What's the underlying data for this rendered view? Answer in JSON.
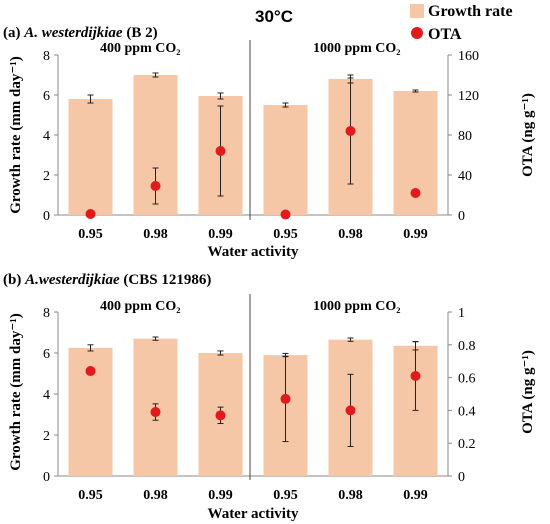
{
  "figure_title": "30°C",
  "legend": [
    {
      "label": "Growth rate",
      "color": "#f5c7a7",
      "marker": "square"
    },
    {
      "label": "OTA",
      "color": "#e31a1c",
      "marker": "circle"
    }
  ],
  "chart_data": [
    {
      "type": "bar",
      "panel": "(a) A. westerdijkiae (B 2)",
      "panel_prefix": "(a) ",
      "panel_species": "A. westerdijkiae",
      "panel_strain": " (B 2)",
      "groups": [
        "400 ppm CO₂",
        "1000 ppm CO₂"
      ],
      "categories": [
        "0.95",
        "0.98",
        "0.99",
        "0.95",
        "0.98",
        "0.99"
      ],
      "xlabel": "Water activity",
      "ylabel_left": "Growth rate (mm day⁻¹)",
      "ylabel_right": "OTA (ng g⁻¹)",
      "ylim_left": [
        0,
        8
      ],
      "yticks_left": [
        0,
        2,
        4,
        6,
        8
      ],
      "ylim_right": [
        0,
        160
      ],
      "yticks_right": [
        0,
        40,
        80,
        120,
        160
      ],
      "series": [
        {
          "name": "Growth rate",
          "axis": "left",
          "values": [
            5.8,
            7.0,
            5.95,
            5.5,
            6.8,
            6.2
          ],
          "errors": [
            0.2,
            0.1,
            0.15,
            0.1,
            0.2,
            0.05
          ]
        },
        {
          "name": "OTA",
          "axis": "right",
          "values": [
            1,
            29,
            64,
            0.5,
            84,
            22
          ],
          "errors": [
            0,
            18,
            45,
            0,
            53,
            0
          ]
        }
      ]
    },
    {
      "type": "bar",
      "panel": "(b) A.westerdijkiae (CBS 121986)",
      "panel_prefix": "(b) ",
      "panel_species": "A.westerdijkiae",
      "panel_strain": " (CBS 121986)",
      "groups": [
        "400 ppm CO₂",
        "1000 ppm CO₂"
      ],
      "categories": [
        "0.95",
        "0.98",
        "0.99",
        "0.95",
        "0.98",
        "0.99"
      ],
      "xlabel": "Water activity",
      "ylabel_left": "Growth rate (mm day⁻¹)",
      "ylabel_right": "OTA (ng g⁻¹)",
      "ylim_left": [
        0,
        8
      ],
      "yticks_left": [
        0,
        2,
        4,
        6,
        8
      ],
      "ylim_right": [
        0,
        1
      ],
      "yticks_right": [
        "0",
        "0.2",
        "0.4",
        "0.6",
        "0.8",
        "1"
      ],
      "series": [
        {
          "name": "Growth rate",
          "axis": "left",
          "values": [
            6.25,
            6.7,
            6.0,
            5.9,
            6.65,
            6.35
          ],
          "errors": [
            0.15,
            0.08,
            0.1,
            0.08,
            0.08,
            0.2
          ]
        },
        {
          "name": "OTA",
          "axis": "right",
          "values": [
            0.64,
            0.39,
            0.37,
            0.47,
            0.4,
            0.61
          ],
          "errors": [
            0,
            0.05,
            0.05,
            0.26,
            0.22,
            0.21
          ]
        }
      ]
    }
  ]
}
